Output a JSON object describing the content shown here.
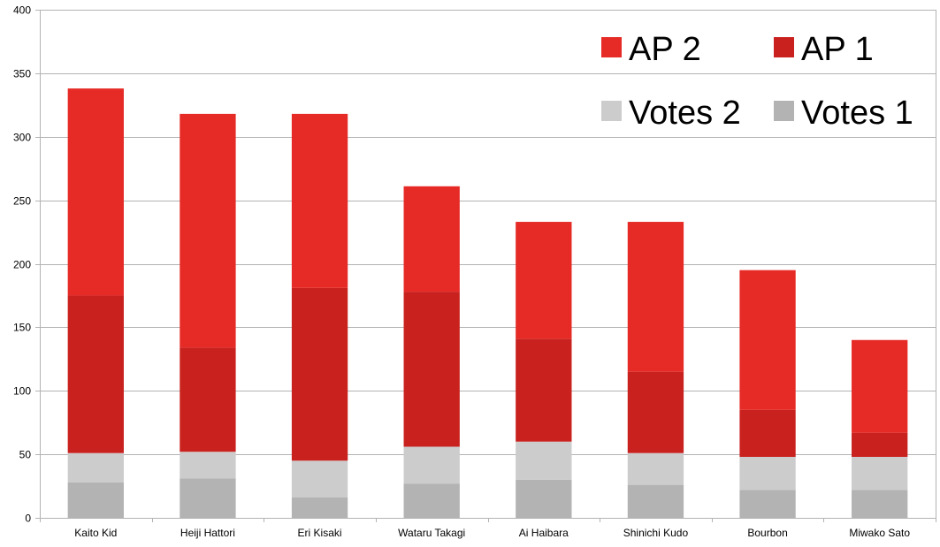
{
  "chart_data": {
    "type": "bar",
    "stacked": true,
    "categories": [
      "Kaito Kid",
      "Heiji Hattori",
      "Eri Kisaki",
      "Wataru Takagi",
      "Ai Haibara",
      "Shinichi Kudo",
      "Bourbon",
      "Miwako Sato"
    ],
    "series": [
      {
        "name": "Votes 1",
        "color": "#b3b3b3",
        "values": [
          28,
          31,
          16,
          27,
          30,
          26,
          22,
          22
        ]
      },
      {
        "name": "Votes 2",
        "color": "#cccccc",
        "values": [
          23,
          21,
          29,
          29,
          30,
          25,
          26,
          26
        ]
      },
      {
        "name": "AP 1",
        "color": "#c9211e",
        "values": [
          124,
          82,
          136,
          122,
          81,
          64,
          37,
          19
        ]
      },
      {
        "name": "AP 2",
        "color": "#e62a26",
        "values": [
          163,
          184,
          137,
          83,
          92,
          118,
          110,
          73
        ]
      }
    ],
    "ylim": [
      0,
      400
    ],
    "yticks": [
      0,
      50,
      100,
      150,
      200,
      250,
      300,
      350,
      400
    ],
    "grid": true,
    "legend_position": "top-right",
    "title": "",
    "xlabel": "",
    "ylabel": ""
  }
}
